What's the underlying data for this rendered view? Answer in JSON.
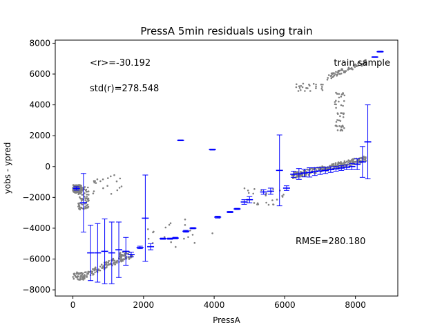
{
  "chart_data": {
    "type": "scatter",
    "title": "PressA 5min residuals using train",
    "xlabel": "PressA",
    "ylabel": "yobs - ypred",
    "xlim": [
      -500,
      9200
    ],
    "ylim": [
      -8400,
      8200
    ],
    "xticks": [
      0,
      2000,
      4000,
      6000,
      8000
    ],
    "yticks": [
      -8000,
      -6000,
      -4000,
      -2000,
      0,
      2000,
      4000,
      6000,
      8000
    ],
    "grid": false,
    "legend": {
      "label": "train sample",
      "placement": "top-right"
    },
    "annotations": {
      "mean": "<r>=-30.192",
      "std": "std(r)=278.548",
      "rmse": "RMSE=280.180"
    },
    "colors": {
      "points": "#808080",
      "profile": "#0000ff",
      "axes": "#000000"
    },
    "profile": [
      {
        "x": 100,
        "mean": -1420,
        "err": 110
      },
      {
        "x": 300,
        "mean": -2350,
        "err": 1900
      },
      {
        "x": 500,
        "mean": -5600,
        "err": 1800
      },
      {
        "x": 700,
        "mean": -5600,
        "err": 1900
      },
      {
        "x": 900,
        "mean": -5500,
        "err": 2100
      },
      {
        "x": 1100,
        "mean": -5600,
        "err": 2000
      },
      {
        "x": 1300,
        "mean": -5400,
        "err": 1800
      },
      {
        "x": 1500,
        "mean": -5500,
        "err": 900
      },
      {
        "x": 1650,
        "mean": -5700,
        "err": 150
      },
      {
        "x": 1900,
        "mean": -5250,
        "err": 80
      },
      {
        "x": 2050,
        "mean": -3350,
        "err": 2800
      },
      {
        "x": 2200,
        "mean": -5200,
        "err": 200
      },
      {
        "x": 2550,
        "mean": -4680,
        "err": 40
      },
      {
        "x": 2750,
        "mean": -4680,
        "err": 40
      },
      {
        "x": 2900,
        "mean": -4640,
        "err": 50
      },
      {
        "x": 3050,
        "mean": 1700,
        "err": 30
      },
      {
        "x": 3200,
        "mean": -4200,
        "err": 60
      },
      {
        "x": 3400,
        "mean": -4000,
        "err": 40
      },
      {
        "x": 3950,
        "mean": 1100,
        "err": 30
      },
      {
        "x": 4100,
        "mean": -3280,
        "err": 60
      },
      {
        "x": 4450,
        "mean": -2950,
        "err": 40
      },
      {
        "x": 4650,
        "mean": -2750,
        "err": 40
      },
      {
        "x": 4850,
        "mean": -2300,
        "err": 150
      },
      {
        "x": 5000,
        "mean": -2150,
        "err": 200
      },
      {
        "x": 5400,
        "mean": -1650,
        "err": 150
      },
      {
        "x": 5600,
        "mean": -1600,
        "err": 200
      },
      {
        "x": 5850,
        "mean": -250,
        "err": 2300
      },
      {
        "x": 6050,
        "mean": -1400,
        "err": 150
      },
      {
        "x": 6250,
        "mean": -500,
        "err": 200
      },
      {
        "x": 6400,
        "mean": -480,
        "err": 350
      },
      {
        "x": 6550,
        "mean": -420,
        "err": 250
      },
      {
        "x": 6700,
        "mean": -380,
        "err": 300
      },
      {
        "x": 6850,
        "mean": -330,
        "err": 250
      },
      {
        "x": 7000,
        "mean": -290,
        "err": 220
      },
      {
        "x": 7150,
        "mean": -250,
        "err": 200
      },
      {
        "x": 7300,
        "mean": -200,
        "err": 180
      },
      {
        "x": 7450,
        "mean": -150,
        "err": 150
      },
      {
        "x": 7600,
        "mean": -100,
        "err": 150
      },
      {
        "x": 7750,
        "mean": -50,
        "err": 150
      },
      {
        "x": 7900,
        "mean": 0,
        "err": 200
      },
      {
        "x": 8050,
        "mean": 150,
        "err": 350
      },
      {
        "x": 8200,
        "mean": 300,
        "err": 1000
      },
      {
        "x": 8350,
        "mean": 1600,
        "err": 2400
      },
      {
        "x": 8550,
        "mean": 7100,
        "err": 30
      },
      {
        "x": 8700,
        "mean": 7450,
        "err": 30
      }
    ],
    "point_clusters": [
      {
        "x": [
          0,
          250
        ],
        "y": [
          -1700,
          -1200
        ],
        "n": 160
      },
      {
        "x": [
          150,
          450
        ],
        "y": [
          -2800,
          -1300
        ],
        "n": 70
      },
      {
        "x": [
          0,
          350
        ],
        "y": [
          -7350,
          -6850
        ],
        "n": 40
      },
      {
        "x": [
          300,
          1500
        ],
        "y": [
          -7100,
          -5800
        ],
        "n": 110
      },
      {
        "x": [
          1300,
          1700
        ],
        "y": [
          -6000,
          -5500
        ],
        "n": 30
      },
      {
        "x": [
          400,
          1400
        ],
        "y": [
          -1800,
          -500
        ],
        "n": 20
      },
      {
        "x": [
          6200,
          8300
        ],
        "y": [
          -600,
          500
        ],
        "n": 280
      },
      {
        "x": [
          7200,
          8300
        ],
        "y": [
          5800,
          6800
        ],
        "n": 70
      },
      {
        "x": [
          7400,
          7700
        ],
        "y": [
          2300,
          4800
        ],
        "n": 45
      },
      {
        "x": [
          6300,
          7100
        ],
        "y": [
          4900,
          5400
        ],
        "n": 25
      },
      {
        "x": [
          4800,
          6000
        ],
        "y": [
          -2500,
          -1400
        ],
        "n": 25
      },
      {
        "x": [
          2100,
          4300
        ],
        "y": [
          -5300,
          -3200
        ],
        "n": 20
      }
    ]
  }
}
